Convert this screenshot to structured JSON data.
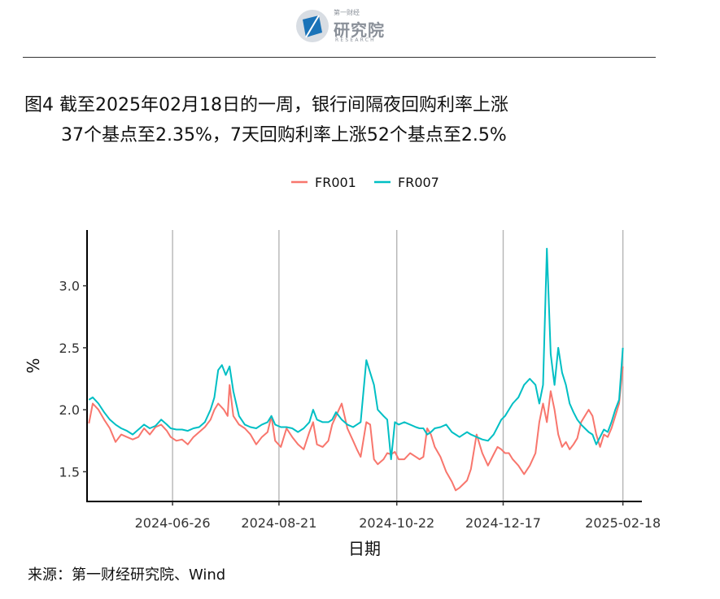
{
  "header": {
    "logo_cn_small": "第一财经",
    "logo_cn_main": "研究院",
    "logo_en": "RESEARCH"
  },
  "figure": {
    "title_line1": "图4  截至2025年02月18日的一周，银行间隔夜回购利率上涨",
    "title_line2": "37个基点至2.35%，7天回购利率上涨52个基点至2.5%",
    "source": "来源：第一财经研究院、Wind"
  },
  "chart_data": {
    "type": "line",
    "xlabel": "日期",
    "ylabel": "%",
    "x_ticks": [
      "2024-06-26",
      "2024-08-21",
      "2024-10-22",
      "2024-12-17",
      "2025-02-18"
    ],
    "x_range": [
      "2024-05-12",
      "2025-02-28"
    ],
    "y_ticks": [
      "1.5",
      "2.0",
      "2.5",
      "3.0"
    ],
    "ylim": [
      1.26,
      3.45
    ],
    "grid": "vertical lines at x ticks",
    "legend_position": "top",
    "series": [
      {
        "name": "FR001",
        "color": "#F8766D",
        "points": [
          [
            "2024-05-13",
            1.89
          ],
          [
            "2024-05-15",
            2.05
          ],
          [
            "2024-05-18",
            2.0
          ],
          [
            "2024-05-21",
            1.92
          ],
          [
            "2024-05-24",
            1.85
          ],
          [
            "2024-05-27",
            1.74
          ],
          [
            "2024-05-30",
            1.8
          ],
          [
            "2024-06-02",
            1.78
          ],
          [
            "2024-06-05",
            1.76
          ],
          [
            "2024-06-08",
            1.78
          ],
          [
            "2024-06-11",
            1.85
          ],
          [
            "2024-06-14",
            1.8
          ],
          [
            "2024-06-17",
            1.86
          ],
          [
            "2024-06-20",
            1.88
          ],
          [
            "2024-06-23",
            1.83
          ],
          [
            "2024-06-25",
            1.78
          ],
          [
            "2024-06-28",
            1.75
          ],
          [
            "2024-07-01",
            1.76
          ],
          [
            "2024-07-04",
            1.72
          ],
          [
            "2024-07-07",
            1.78
          ],
          [
            "2024-07-10",
            1.82
          ],
          [
            "2024-07-13",
            1.86
          ],
          [
            "2024-07-16",
            1.92
          ],
          [
            "2024-07-18",
            2.0
          ],
          [
            "2024-07-20",
            2.05
          ],
          [
            "2024-07-23",
            2.0
          ],
          [
            "2024-07-25",
            1.95
          ],
          [
            "2024-07-26",
            2.2
          ],
          [
            "2024-07-28",
            1.95
          ],
          [
            "2024-07-31",
            1.88
          ],
          [
            "2024-08-03",
            1.85
          ],
          [
            "2024-08-06",
            1.8
          ],
          [
            "2024-08-09",
            1.72
          ],
          [
            "2024-08-12",
            1.78
          ],
          [
            "2024-08-15",
            1.82
          ],
          [
            "2024-08-17",
            1.95
          ],
          [
            "2024-08-19",
            1.75
          ],
          [
            "2024-08-22",
            1.7
          ],
          [
            "2024-08-25",
            1.85
          ],
          [
            "2024-08-28",
            1.78
          ],
          [
            "2024-08-31",
            1.72
          ],
          [
            "2024-09-03",
            1.68
          ],
          [
            "2024-09-06",
            1.82
          ],
          [
            "2024-09-08",
            1.9
          ],
          [
            "2024-09-10",
            1.72
          ],
          [
            "2024-09-13",
            1.7
          ],
          [
            "2024-09-16",
            1.75
          ],
          [
            "2024-09-18",
            1.88
          ],
          [
            "2024-09-20",
            1.95
          ],
          [
            "2024-09-23",
            2.05
          ],
          [
            "2024-09-26",
            1.85
          ],
          [
            "2024-09-29",
            1.75
          ],
          [
            "2024-10-01",
            1.68
          ],
          [
            "2024-10-03",
            1.62
          ],
          [
            "2024-10-06",
            1.9
          ],
          [
            "2024-10-08",
            1.88
          ],
          [
            "2024-10-10",
            1.6
          ],
          [
            "2024-10-12",
            1.56
          ],
          [
            "2024-10-15",
            1.6
          ],
          [
            "2024-10-17",
            1.65
          ],
          [
            "2024-10-19",
            1.64
          ],
          [
            "2024-10-21",
            1.66
          ],
          [
            "2024-10-23",
            1.6
          ],
          [
            "2024-10-26",
            1.6
          ],
          [
            "2024-10-29",
            1.65
          ],
          [
            "2024-11-01",
            1.62
          ],
          [
            "2024-11-03",
            1.6
          ],
          [
            "2024-11-05",
            1.62
          ],
          [
            "2024-11-07",
            1.85
          ],
          [
            "2024-11-09",
            1.8
          ],
          [
            "2024-11-11",
            1.7
          ],
          [
            "2024-11-14",
            1.62
          ],
          [
            "2024-11-17",
            1.5
          ],
          [
            "2024-11-20",
            1.42
          ],
          [
            "2024-11-22",
            1.35
          ],
          [
            "2024-11-24",
            1.37
          ],
          [
            "2024-11-26",
            1.4
          ],
          [
            "2024-11-28",
            1.43
          ],
          [
            "2024-11-30",
            1.52
          ],
          [
            "2024-12-03",
            1.8
          ],
          [
            "2024-12-06",
            1.65
          ],
          [
            "2024-12-09",
            1.55
          ],
          [
            "2024-12-12",
            1.64
          ],
          [
            "2024-12-14",
            1.7
          ],
          [
            "2024-12-16",
            1.68
          ],
          [
            "2024-12-18",
            1.65
          ],
          [
            "2024-12-20",
            1.65
          ],
          [
            "2024-12-22",
            1.6
          ],
          [
            "2024-12-25",
            1.55
          ],
          [
            "2024-12-28",
            1.48
          ],
          [
            "2024-12-31",
            1.55
          ],
          [
            "2025-01-03",
            1.65
          ],
          [
            "2025-01-05",
            1.9
          ],
          [
            "2025-01-07",
            2.05
          ],
          [
            "2025-01-09",
            1.9
          ],
          [
            "2025-01-11",
            2.15
          ],
          [
            "2025-01-13",
            2.0
          ],
          [
            "2025-01-15",
            1.8
          ],
          [
            "2025-01-17",
            1.7
          ],
          [
            "2025-01-19",
            1.74
          ],
          [
            "2025-01-21",
            1.68
          ],
          [
            "2025-01-23",
            1.72
          ],
          [
            "2025-01-25",
            1.77
          ],
          [
            "2025-01-27",
            1.9
          ],
          [
            "2025-01-29",
            1.95
          ],
          [
            "2025-01-31",
            2.0
          ],
          [
            "2025-02-02",
            1.95
          ],
          [
            "2025-02-04",
            1.8
          ],
          [
            "2025-02-06",
            1.7
          ],
          [
            "2025-02-08",
            1.8
          ],
          [
            "2025-02-10",
            1.78
          ],
          [
            "2025-02-12",
            1.85
          ],
          [
            "2025-02-14",
            1.95
          ],
          [
            "2025-02-16",
            2.05
          ],
          [
            "2025-02-18",
            2.35
          ]
        ]
      },
      {
        "name": "FR007",
        "color": "#00BFC4",
        "points": [
          [
            "2024-05-13",
            2.08
          ],
          [
            "2024-05-15",
            2.1
          ],
          [
            "2024-05-18",
            2.05
          ],
          [
            "2024-05-21",
            1.98
          ],
          [
            "2024-05-24",
            1.92
          ],
          [
            "2024-05-27",
            1.88
          ],
          [
            "2024-05-30",
            1.85
          ],
          [
            "2024-06-02",
            1.83
          ],
          [
            "2024-06-05",
            1.8
          ],
          [
            "2024-06-08",
            1.84
          ],
          [
            "2024-06-11",
            1.88
          ],
          [
            "2024-06-14",
            1.85
          ],
          [
            "2024-06-17",
            1.87
          ],
          [
            "2024-06-20",
            1.92
          ],
          [
            "2024-06-23",
            1.88
          ],
          [
            "2024-06-25",
            1.85
          ],
          [
            "2024-06-28",
            1.84
          ],
          [
            "2024-07-01",
            1.84
          ],
          [
            "2024-07-04",
            1.83
          ],
          [
            "2024-07-07",
            1.85
          ],
          [
            "2024-07-10",
            1.86
          ],
          [
            "2024-07-13",
            1.9
          ],
          [
            "2024-07-16",
            2.0
          ],
          [
            "2024-07-18",
            2.1
          ],
          [
            "2024-07-20",
            2.32
          ],
          [
            "2024-07-22",
            2.36
          ],
          [
            "2024-07-24",
            2.28
          ],
          [
            "2024-07-26",
            2.35
          ],
          [
            "2024-07-28",
            2.15
          ],
          [
            "2024-07-31",
            1.95
          ],
          [
            "2024-08-03",
            1.88
          ],
          [
            "2024-08-06",
            1.86
          ],
          [
            "2024-08-09",
            1.85
          ],
          [
            "2024-08-12",
            1.88
          ],
          [
            "2024-08-15",
            1.9
          ],
          [
            "2024-08-17",
            1.95
          ],
          [
            "2024-08-19",
            1.88
          ],
          [
            "2024-08-22",
            1.86
          ],
          [
            "2024-08-25",
            1.86
          ],
          [
            "2024-08-28",
            1.85
          ],
          [
            "2024-08-31",
            1.82
          ],
          [
            "2024-09-03",
            1.85
          ],
          [
            "2024-09-06",
            1.9
          ],
          [
            "2024-09-08",
            2.0
          ],
          [
            "2024-09-10",
            1.92
          ],
          [
            "2024-09-13",
            1.9
          ],
          [
            "2024-09-16",
            1.9
          ],
          [
            "2024-09-18",
            1.92
          ],
          [
            "2024-09-20",
            1.98
          ],
          [
            "2024-09-23",
            1.92
          ],
          [
            "2024-09-26",
            1.88
          ],
          [
            "2024-09-29",
            1.86
          ],
          [
            "2024-10-01",
            1.88
          ],
          [
            "2024-10-03",
            1.9
          ],
          [
            "2024-10-06",
            2.4
          ],
          [
            "2024-10-08",
            2.3
          ],
          [
            "2024-10-10",
            2.2
          ],
          [
            "2024-10-12",
            2.0
          ],
          [
            "2024-10-15",
            1.95
          ],
          [
            "2024-10-17",
            1.92
          ],
          [
            "2024-10-19",
            1.6
          ],
          [
            "2024-10-21",
            1.9
          ],
          [
            "2024-10-23",
            1.88
          ],
          [
            "2024-10-26",
            1.9
          ],
          [
            "2024-10-29",
            1.88
          ],
          [
            "2024-11-01",
            1.86
          ],
          [
            "2024-11-03",
            1.85
          ],
          [
            "2024-11-05",
            1.85
          ],
          [
            "2024-11-07",
            1.8
          ],
          [
            "2024-11-09",
            1.82
          ],
          [
            "2024-11-11",
            1.85
          ],
          [
            "2024-11-14",
            1.86
          ],
          [
            "2024-11-17",
            1.88
          ],
          [
            "2024-11-20",
            1.82
          ],
          [
            "2024-11-22",
            1.8
          ],
          [
            "2024-11-24",
            1.78
          ],
          [
            "2024-11-26",
            1.8
          ],
          [
            "2024-11-28",
            1.82
          ],
          [
            "2024-11-30",
            1.8
          ],
          [
            "2024-12-03",
            1.78
          ],
          [
            "2024-12-06",
            1.76
          ],
          [
            "2024-12-09",
            1.75
          ],
          [
            "2024-12-12",
            1.8
          ],
          [
            "2024-12-14",
            1.86
          ],
          [
            "2024-12-16",
            1.92
          ],
          [
            "2024-12-18",
            1.95
          ],
          [
            "2024-12-20",
            2.0
          ],
          [
            "2024-12-22",
            2.05
          ],
          [
            "2024-12-25",
            2.1
          ],
          [
            "2024-12-28",
            2.2
          ],
          [
            "2024-12-31",
            2.25
          ],
          [
            "2025-01-03",
            2.2
          ],
          [
            "2025-01-05",
            2.05
          ],
          [
            "2025-01-07",
            2.2
          ],
          [
            "2025-01-09",
            3.3
          ],
          [
            "2025-01-11",
            2.45
          ],
          [
            "2025-01-13",
            2.2
          ],
          [
            "2025-01-15",
            2.5
          ],
          [
            "2025-01-17",
            2.3
          ],
          [
            "2025-01-19",
            2.2
          ],
          [
            "2025-01-21",
            2.05
          ],
          [
            "2025-01-23",
            1.98
          ],
          [
            "2025-01-25",
            1.92
          ],
          [
            "2025-01-27",
            1.88
          ],
          [
            "2025-01-29",
            1.85
          ],
          [
            "2025-01-31",
            1.82
          ],
          [
            "2025-02-02",
            1.8
          ],
          [
            "2025-02-04",
            1.72
          ],
          [
            "2025-02-06",
            1.78
          ],
          [
            "2025-02-08",
            1.84
          ],
          [
            "2025-02-10",
            1.82
          ],
          [
            "2025-02-12",
            1.9
          ],
          [
            "2025-02-14",
            2.0
          ],
          [
            "2025-02-16",
            2.08
          ],
          [
            "2025-02-18",
            2.5
          ]
        ]
      }
    ]
  }
}
